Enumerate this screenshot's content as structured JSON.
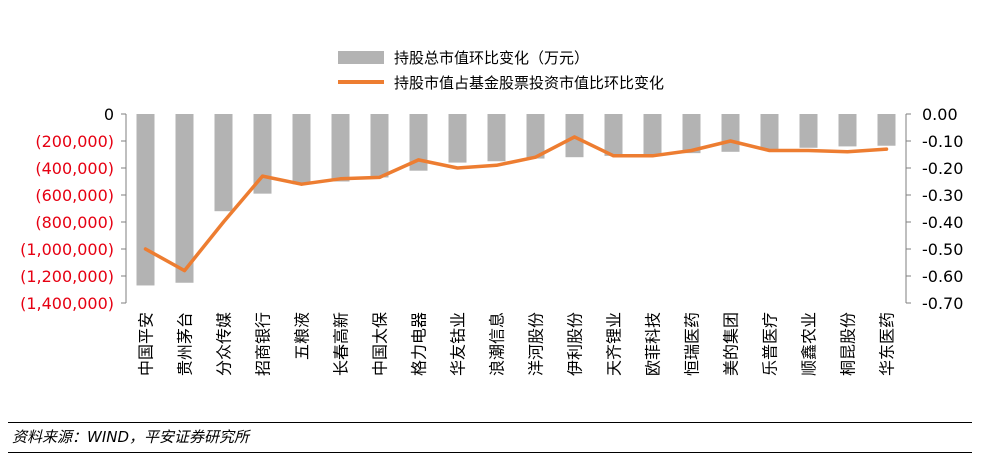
{
  "chart_data": {
    "type": "bar",
    "categories": [
      "中国平安",
      "贵州茅台",
      "分众传媒",
      "招商银行",
      "五粮液",
      "长春高新",
      "中国太保",
      "格力电器",
      "华友钴业",
      "浪潮信息",
      "洋河股份",
      "伊利股份",
      "天齐锂业",
      "欧菲科技",
      "恒瑞医药",
      "美的集团",
      "乐普医疗",
      "顺鑫农业",
      "桐昆股份",
      "华东医药"
    ],
    "series": [
      {
        "name": "持股总市值环比变化（万元）",
        "type": "bar",
        "axis": "left",
        "color": "#b3b3b3",
        "values": [
          -1270000,
          -1250000,
          -720000,
          -590000,
          -520000,
          -500000,
          -470000,
          -420000,
          -360000,
          -350000,
          -330000,
          -320000,
          -310000,
          -305000,
          -290000,
          -280000,
          -260000,
          -250000,
          -240000,
          -235000
        ]
      },
      {
        "name": "持股市值占基金股票投资市值比环比变化",
        "type": "line",
        "axis": "right",
        "color": "#ed7d31",
        "values": [
          -0.5,
          -0.58,
          -0.4,
          -0.23,
          -0.26,
          -0.24,
          -0.235,
          -0.17,
          -0.2,
          -0.19,
          -0.16,
          -0.085,
          -0.155,
          -0.155,
          -0.135,
          -0.1,
          -0.135,
          -0.135,
          -0.14,
          -0.13
        ]
      }
    ],
    "y_left": {
      "ylim": [
        -1400000,
        0
      ],
      "ticks": [
        0,
        -200000,
        -400000,
        -600000,
        -800000,
        -1000000,
        -1200000,
        -1400000
      ],
      "tick_labels": [
        "0",
        "(200,000)",
        "(400,000)",
        "(600,000)",
        "(800,000)",
        "(1,000,000)",
        "(1,200,000)",
        "(1,400,000)"
      ],
      "negative_color": "#e60012"
    },
    "y_right": {
      "ylim": [
        -0.7,
        0.0
      ],
      "ticks": [
        0,
        -0.1,
        -0.2,
        -0.3,
        -0.4,
        -0.5,
        -0.6,
        -0.7
      ],
      "tick_labels": [
        "0.00",
        "-0.10",
        "-0.20",
        "-0.30",
        "-0.40",
        "-0.50",
        "-0.60",
        "-0.70"
      ]
    },
    "legend_position": "top-center",
    "grid": false
  },
  "source": "资料来源：WIND，平安证券研究所"
}
